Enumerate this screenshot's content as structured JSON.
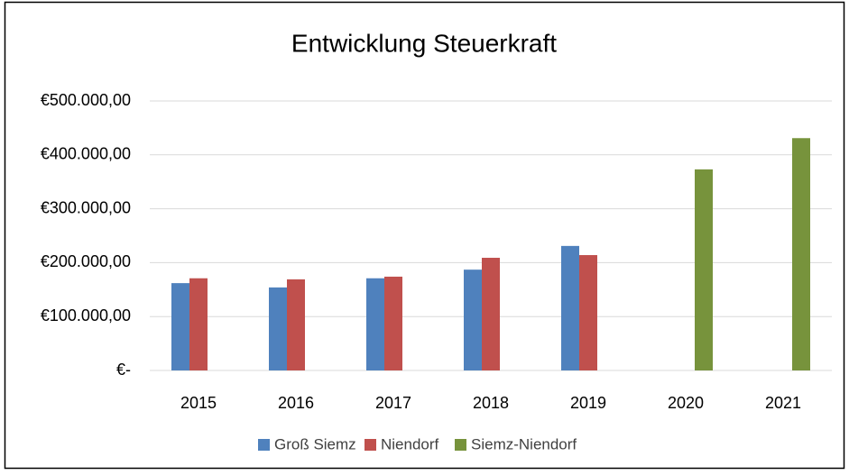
{
  "chart_data": {
    "type": "bar",
    "title": "Entwicklung Steuerkraft",
    "categories": [
      "2015",
      "2016",
      "2017",
      "2018",
      "2019",
      "2020",
      "2021"
    ],
    "series": [
      {
        "name": "Groß Siemz",
        "color": "#4f81bd",
        "values": [
          162000,
          154000,
          171000,
          187000,
          231000,
          null,
          null
        ]
      },
      {
        "name": "Niendorf",
        "color": "#c0504d",
        "values": [
          171000,
          169000,
          174000,
          209000,
          214000,
          null,
          null
        ]
      },
      {
        "name": "Siemz-Niendorf",
        "color": "#77933c",
        "values": [
          null,
          null,
          null,
          null,
          null,
          373000,
          431000
        ]
      }
    ],
    "ylim": [
      0,
      500000
    ],
    "yticks": [
      {
        "value": 0,
        "label": "€-"
      },
      {
        "value": 100000,
        "label": "€100.000,00"
      },
      {
        "value": 200000,
        "label": "€200.000,00"
      },
      {
        "value": 300000,
        "label": "€300.000,00"
      },
      {
        "value": 400000,
        "label": "€400.000,00"
      },
      {
        "value": 500000,
        "label": "€500.000,00"
      }
    ],
    "grid": true,
    "legend": "bottom"
  }
}
